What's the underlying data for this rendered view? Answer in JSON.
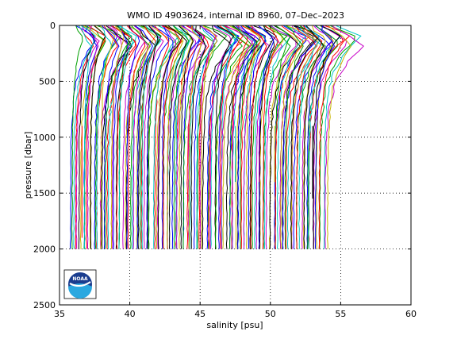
{
  "chart_data": {
    "type": "line",
    "title": "WMO ID 4903624, internal ID 8960, 07–Dec–2023",
    "xlabel": "salinity [psu]",
    "ylabel": "pressure [dbar]",
    "xlim": [
      35,
      60
    ],
    "ylim": [
      2500,
      0
    ],
    "y_reversed": true,
    "xticks": [
      35,
      40,
      45,
      50,
      55,
      60
    ],
    "yticks": [
      0,
      500,
      1000,
      1500,
      2000,
      2500
    ],
    "grid": "dotted",
    "legend": "none",
    "profile_count": 160,
    "profile_color_cycle": [
      "#0000ff",
      "#00a000",
      "#ff0000",
      "#00c8c8",
      "#c800c8",
      "#c8b400",
      "#000000"
    ],
    "deep_salinity_range": [
      35.8,
      53.9
    ],
    "surface_salinity_range": [
      36.2,
      56.0
    ],
    "max_pressure": 2000,
    "shallow_profile_segments": [
      {
        "x": 36.6,
        "max_pressure": 1900
      },
      {
        "x": 47.5,
        "max_pressure": 1400
      },
      {
        "x": 49.2,
        "max_pressure": 1400
      },
      {
        "x": 50.3,
        "max_pressure": 1400
      },
      {
        "x": 53.0,
        "max_pressure": 1550
      }
    ]
  },
  "logo": {
    "name": "noaa-logo",
    "text": "NOAA"
  }
}
